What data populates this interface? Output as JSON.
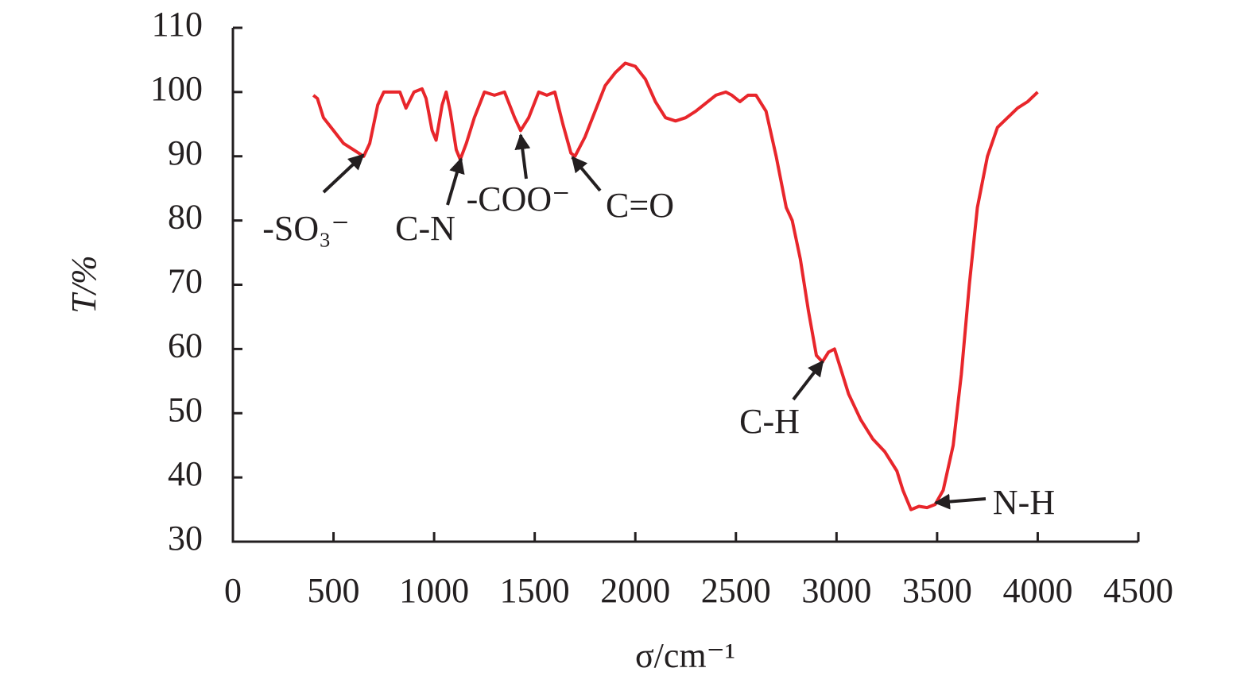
{
  "chart_data": {
    "type": "line",
    "xlabel": "σ/cm⁻¹",
    "ylabel": "T/%",
    "xlim": [
      0,
      4500
    ],
    "xticks": [
      0,
      500,
      1000,
      1500,
      2000,
      2500,
      3000,
      3500,
      4000,
      4500
    ],
    "ylim": [
      30,
      110
    ],
    "yticks": [
      30,
      40,
      50,
      60,
      70,
      80,
      90,
      100,
      110
    ],
    "x": [
      400,
      420,
      450,
      500,
      550,
      600,
      650,
      680,
      720,
      750,
      800,
      830,
      860,
      900,
      940,
      960,
      990,
      1010,
      1040,
      1060,
      1080,
      1110,
      1130,
      1160,
      1200,
      1250,
      1300,
      1350,
      1400,
      1430,
      1470,
      1520,
      1560,
      1600,
      1640,
      1680,
      1700,
      1750,
      1800,
      1850,
      1900,
      1950,
      2000,
      2050,
      2100,
      2150,
      2200,
      2250,
      2300,
      2400,
      2450,
      2480,
      2520,
      2560,
      2600,
      2650,
      2700,
      2750,
      2780,
      2820,
      2860,
      2900,
      2930,
      2960,
      2990,
      3020,
      3060,
      3120,
      3180,
      3240,
      3300,
      3330,
      3370,
      3410,
      3450,
      3490,
      3530,
      3580,
      3620,
      3660,
      3700,
      3750,
      3800,
      3850,
      3900,
      3950,
      4000
    ],
    "series": [
      {
        "color": "#e8262b",
        "values": [
          99.5,
          99,
          96,
          94,
          92,
          91,
          90,
          92,
          98,
          100,
          100,
          100,
          97.5,
          100,
          100.5,
          99,
          94,
          92.5,
          98,
          100,
          97,
          91,
          89.5,
          92,
          96,
          100,
          99.5,
          100,
          96,
          94,
          96,
          100,
          99.5,
          100,
          95,
          90.5,
          90,
          93,
          97,
          101,
          103,
          104.5,
          104,
          102,
          98.5,
          96,
          95.5,
          96,
          97,
          99.5,
          100,
          99.5,
          98.5,
          99.5,
          99.5,
          97,
          90,
          82,
          80,
          74,
          66,
          59,
          58,
          59.5,
          60,
          57,
          53,
          49,
          46,
          44,
          41,
          38,
          35,
          35.5,
          35.3,
          35.8,
          38,
          45,
          56,
          70,
          82,
          90,
          94.5,
          96,
          97.5,
          98.5,
          100
        ]
      }
    ],
    "annotations": [
      "-SO₃⁻",
      "C-N",
      "-COO⁻",
      "C=O",
      "C-H",
      "N-H"
    ]
  }
}
